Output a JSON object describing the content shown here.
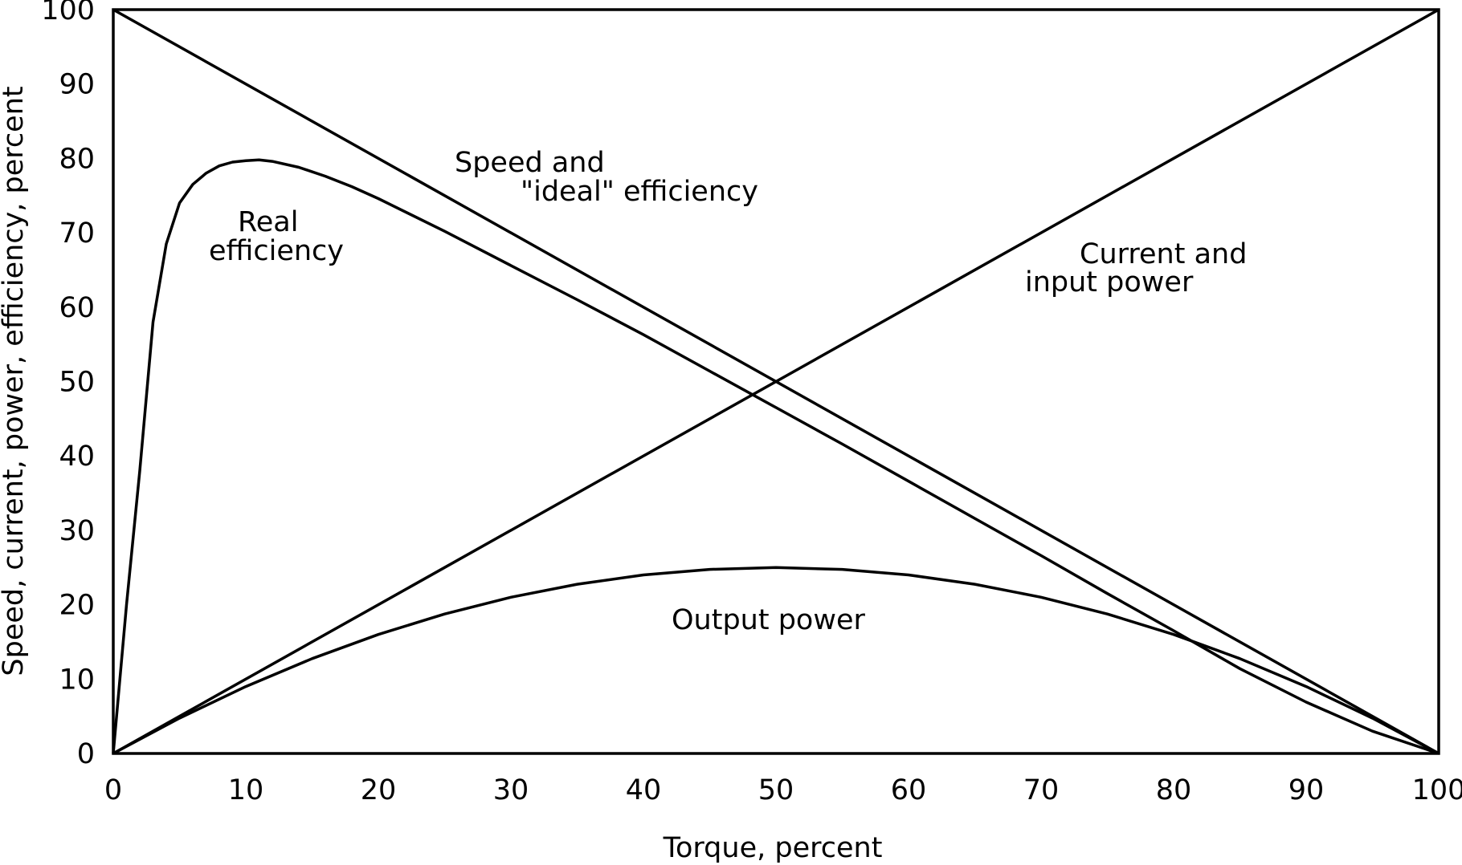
{
  "chart_data": {
    "type": "line",
    "xlabel": "Torque, percent",
    "ylabel": "Speed, current, power, efficiency, percent",
    "xlim": [
      0,
      100
    ],
    "ylim": [
      0,
      100
    ],
    "x_ticks": [
      0,
      10,
      20,
      30,
      40,
      50,
      60,
      70,
      80,
      90,
      100
    ],
    "y_ticks": [
      0,
      10,
      20,
      30,
      40,
      50,
      60,
      70,
      80,
      90,
      100
    ],
    "grid": false,
    "colors": {
      "line": "#000000",
      "background": "#ffffff"
    },
    "series": [
      {
        "name": "Speed and \"ideal\" efficiency",
        "x": [
          0,
          100
        ],
        "y": [
          100,
          0
        ]
      },
      {
        "name": "Current and input power",
        "x": [
          0,
          100
        ],
        "y": [
          0,
          100
        ]
      },
      {
        "name": "Output power",
        "x": [
          0,
          5,
          10,
          15,
          20,
          25,
          30,
          35,
          40,
          45,
          50,
          55,
          60,
          65,
          70,
          75,
          80,
          85,
          90,
          95,
          100
        ],
        "y": [
          0,
          4.75,
          9,
          12.75,
          16,
          18.75,
          21,
          22.75,
          24,
          24.75,
          25,
          24.75,
          24,
          22.75,
          21,
          18.75,
          16,
          12.75,
          9,
          4.75,
          0
        ]
      },
      {
        "name": "Real efficiency",
        "x": [
          0,
          1,
          2,
          3,
          4,
          5,
          6,
          7,
          8,
          9,
          10,
          11,
          12,
          14,
          16,
          18,
          20,
          25,
          30,
          35,
          40,
          45,
          50,
          55,
          60,
          65,
          70,
          75,
          80,
          85,
          90,
          95,
          100
        ],
        "y": [
          0,
          20,
          38,
          58,
          68.5,
          74,
          76.5,
          78,
          79,
          79.5,
          79.7,
          79.8,
          79.6,
          78.8,
          77.6,
          76.2,
          74.6,
          70.2,
          65.6,
          61,
          56.3,
          51.4,
          46.5,
          41.6,
          36.6,
          31.6,
          26.6,
          21.5,
          16.5,
          11.4,
          6.9,
          3,
          0
        ]
      }
    ],
    "annotations": {
      "speed_line1": "Speed and",
      "speed_line2": "\"ideal\" efficiency",
      "real_line1": "Real",
      "real_line2": "efficiency",
      "current_line1": "Current and",
      "current_line2": "input power",
      "output": "Output power"
    }
  }
}
